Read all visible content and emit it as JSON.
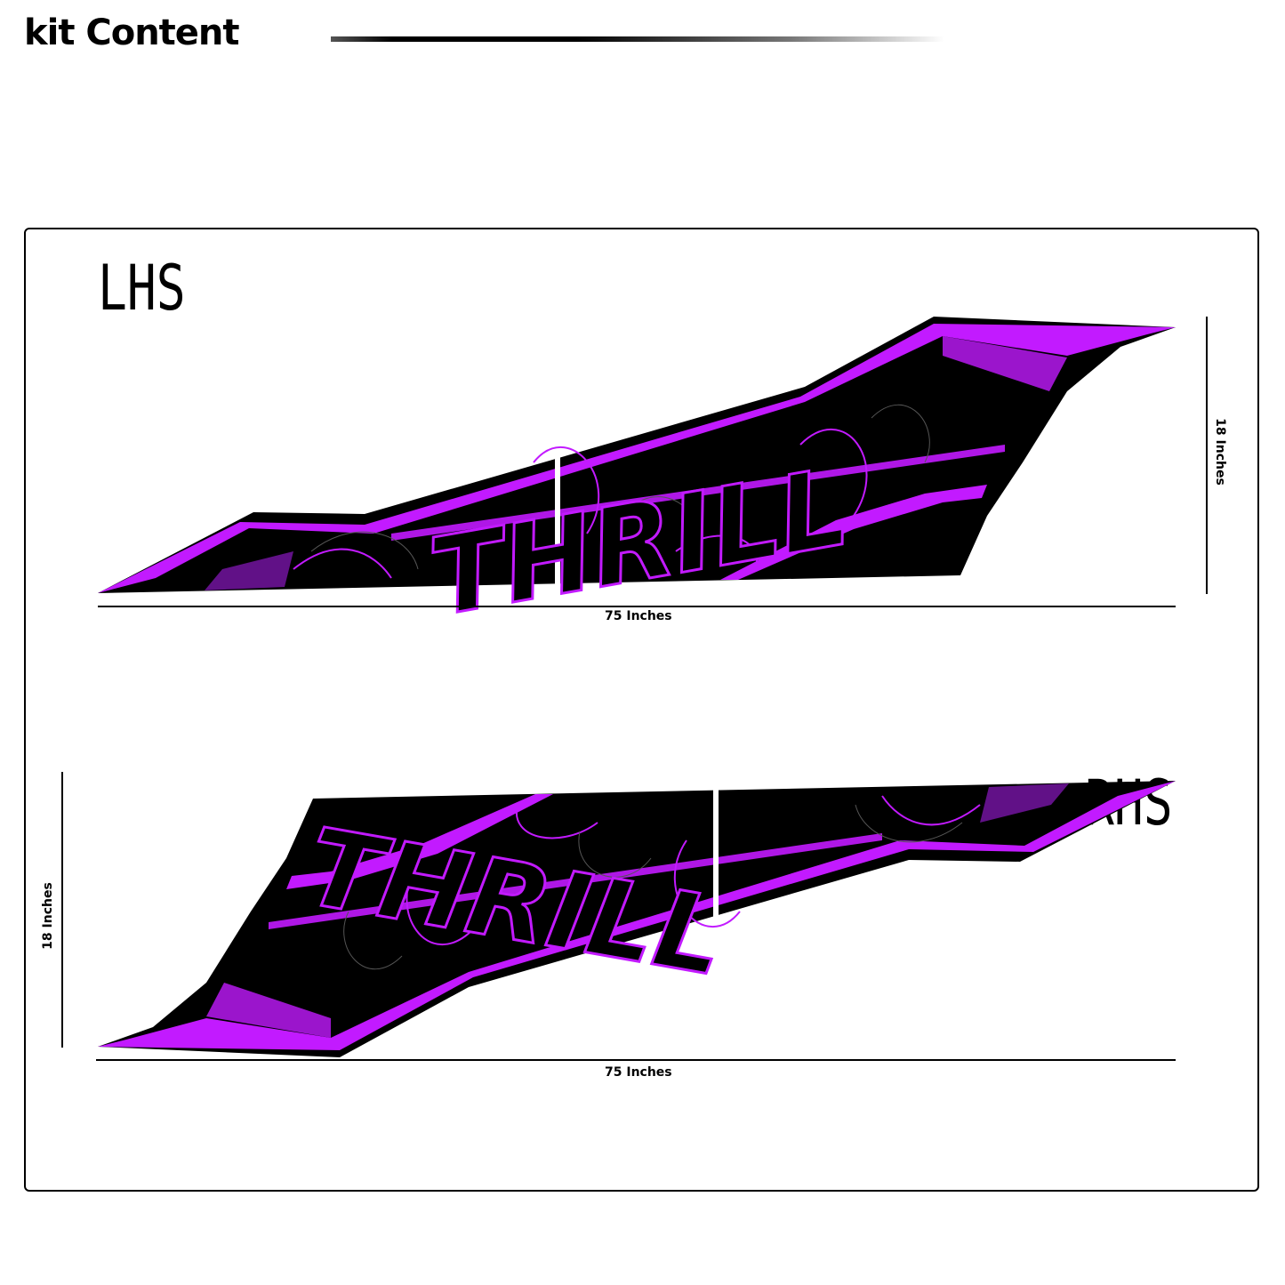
{
  "header": {
    "title": "kit Content"
  },
  "panels": {
    "lhs": {
      "label": "LHS",
      "width_label": "75 Inches",
      "height_label": "18 Inches"
    },
    "rhs": {
      "label": "RHS",
      "width_label": "75 Inches",
      "height_label": "18 Inches"
    }
  },
  "graphic": {
    "logo_text": "THRILL"
  },
  "colors": {
    "accent": "#c21aff",
    "base": "#000000",
    "background": "#ffffff"
  }
}
